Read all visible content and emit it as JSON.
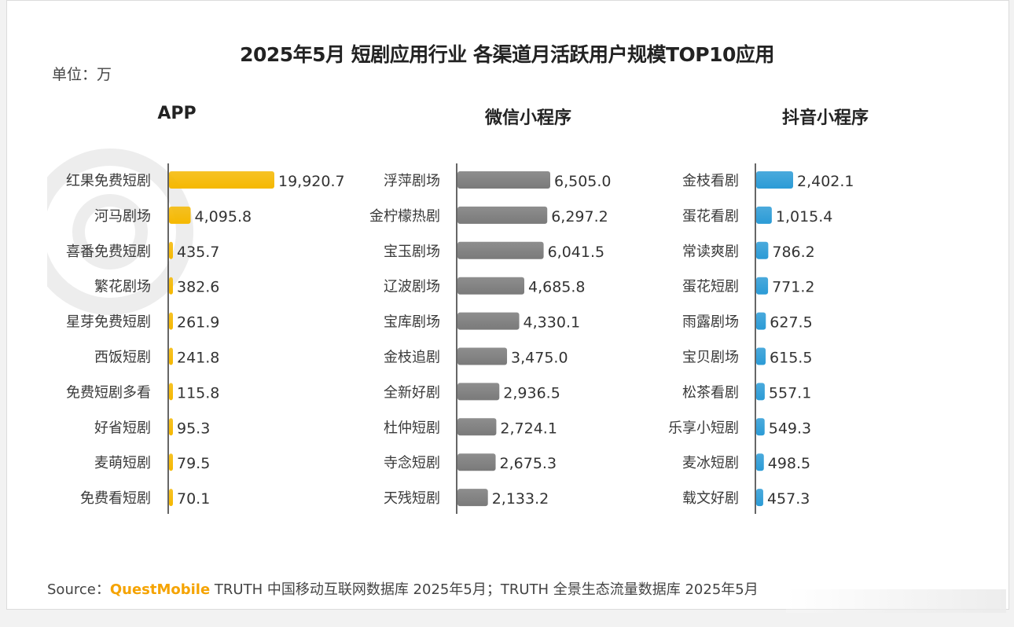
{
  "title": "2025年5月 短剧应用行业 各渠道月活跃用户规模TOP10应用",
  "unit_label": "单位：万",
  "source": {
    "prefix": "Source：",
    "brand": "QuestMobile",
    "text": " TRUTH 中国移动互联网数据库 2025年5月；TRUTH 全景生态流量数据库 2025年5月"
  },
  "colors": {
    "app": "#f5b800",
    "wechat": "#7a7a7a",
    "douyin": "#2b9bd6",
    "brand": "#f5a300"
  },
  "chart_data": [
    {
      "type": "bar",
      "title": "APP",
      "categories": [
        "红果免费短剧",
        "河马剧场",
        "喜番免费短剧",
        "繁花剧场",
        "星芽免费短剧",
        "西饭短剧",
        "免费短剧多看",
        "好省短剧",
        "麦萌短剧",
        "免费看短剧"
      ],
      "values": [
        19920.7,
        4095.8,
        435.7,
        382.6,
        261.9,
        241.8,
        115.8,
        95.3,
        79.5,
        70.1
      ],
      "value_labels": [
        "19,920.7",
        "4,095.8",
        "435.7",
        "382.6",
        "261.9",
        "241.8",
        "115.8",
        "95.3",
        "79.5",
        "70.1"
      ],
      "orientation": "horizontal",
      "max": 19920.7
    },
    {
      "type": "bar",
      "title": "微信小程序",
      "categories": [
        "浮萍剧场",
        "金柠檬热剧",
        "宝玉剧场",
        "辽波剧场",
        "宝库剧场",
        "金枝追剧",
        "全新好剧",
        "杜仲短剧",
        "寺念短剧",
        "天残短剧"
      ],
      "values": [
        6505.0,
        6297.2,
        6041.5,
        4685.8,
        4330.1,
        3475.0,
        2936.5,
        2724.1,
        2675.3,
        2133.2
      ],
      "value_labels": [
        "6,505.0",
        "6,297.2",
        "6,041.5",
        "4,685.8",
        "4,330.1",
        "3,475.0",
        "2,936.5",
        "2,724.1",
        "2,675.3",
        "2,133.2"
      ],
      "orientation": "horizontal",
      "max": 6505.0
    },
    {
      "type": "bar",
      "title": "抖音小程序",
      "categories": [
        "金枝看剧",
        "蛋花看剧",
        "常读爽剧",
        "蛋花短剧",
        "雨露剧场",
        "宝贝剧场",
        "松茶看剧",
        "乐享小短剧",
        "麦冰短剧",
        "载文好剧"
      ],
      "values": [
        2402.1,
        1015.4,
        786.2,
        771.2,
        627.5,
        615.5,
        557.1,
        549.3,
        498.5,
        457.3
      ],
      "value_labels": [
        "2,402.1",
        "1,015.4",
        "786.2",
        "771.2",
        "627.5",
        "615.5",
        "557.1",
        "549.3",
        "498.5",
        "457.3"
      ],
      "orientation": "horizontal",
      "max": 2402.1
    }
  ]
}
